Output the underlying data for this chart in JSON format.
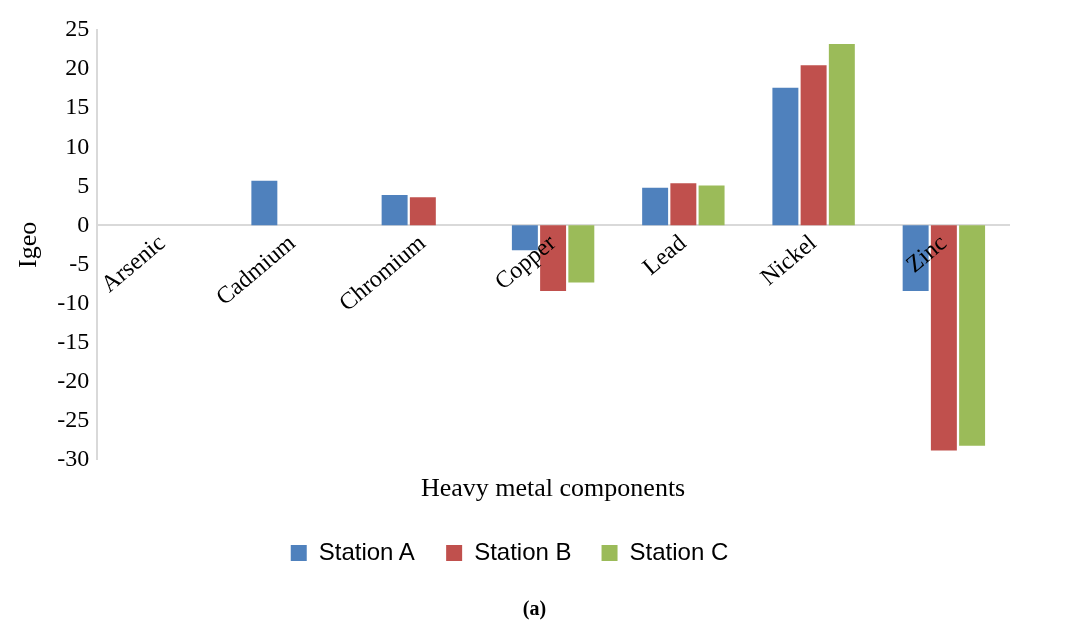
{
  "chart_data": {
    "type": "bar",
    "xlabel": "Heavy metal components",
    "ylabel": "Igeo",
    "categories": [
      "Arsenic",
      "Cadmium",
      "Chromium",
      "Copper",
      "Lead",
      "Nickel",
      "Zinc"
    ],
    "series": [
      {
        "name": "Station A",
        "color": "#4f81bd",
        "values": [
          0,
          5.7,
          3.9,
          -3.2,
          4.8,
          17.6,
          -8.4
        ]
      },
      {
        "name": "Station B",
        "color": "#c0504d",
        "values": [
          0,
          0,
          3.6,
          -8.4,
          5.4,
          20.5,
          -28.8
        ]
      },
      {
        "name": "Station C",
        "color": "#9bbb59",
        "values": [
          0,
          0,
          0,
          -7.3,
          5.1,
          23.2,
          -28.2
        ]
      }
    ],
    "ylim": [
      -30,
      25
    ],
    "yticks": [
      -30,
      -25,
      -20,
      -15,
      -10,
      -5,
      0,
      5,
      10,
      15,
      20,
      25
    ],
    "grid": false,
    "legend": "bottom",
    "annotations": [
      "(a)"
    ]
  }
}
